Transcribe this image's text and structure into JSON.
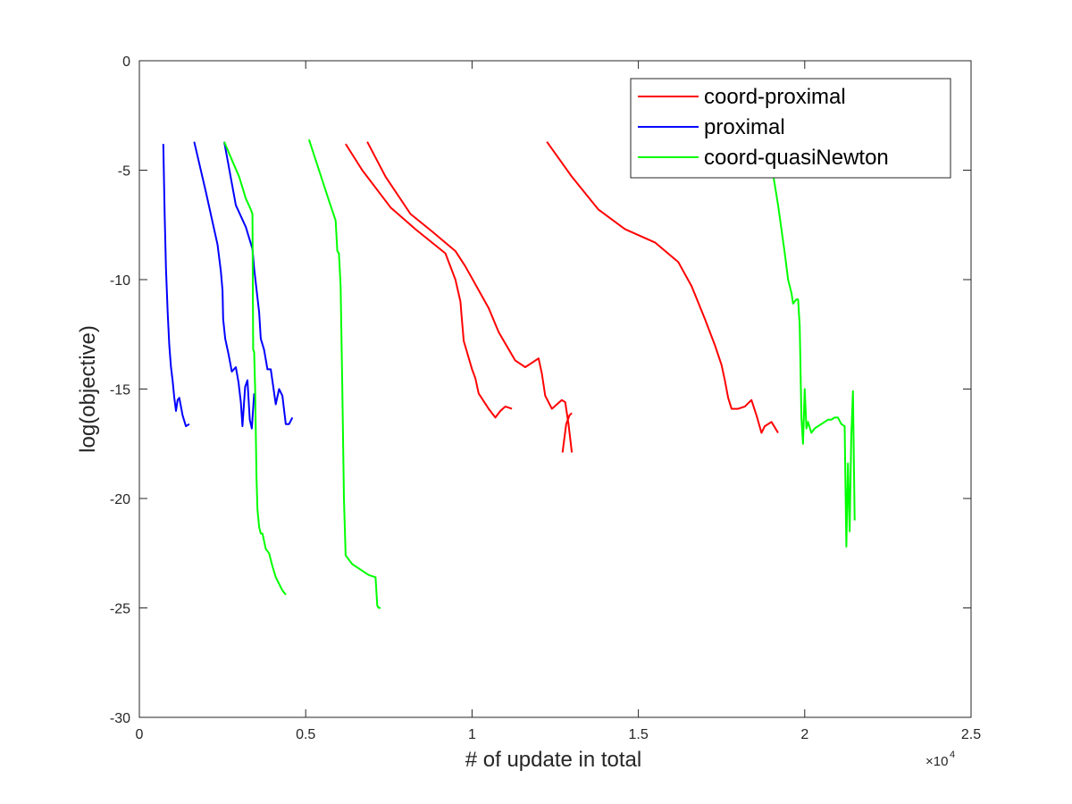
{
  "chart_data": {
    "type": "line",
    "xlabel": "# of update in total",
    "ylabel": "log(objective)",
    "x_exponent": {
      "base": "×10",
      "power": "4"
    },
    "xlim": [
      0,
      2.5
    ],
    "ylim": [
      -30,
      0
    ],
    "x_ticks": [
      0,
      0.5,
      1,
      1.5,
      2,
      2.5
    ],
    "x_tick_labels": [
      "0",
      "0.5",
      "1",
      "1.5",
      "2",
      "2.5"
    ],
    "y_ticks": [
      0,
      -5,
      -10,
      -15,
      -20,
      -25,
      -30
    ],
    "y_tick_labels": [
      "0",
      "-5",
      "-10",
      "-15",
      "-20",
      "-25",
      "-30"
    ],
    "grid": false,
    "legend_position": "top-right",
    "series": [
      {
        "name": "coord-proximal",
        "color": "#ff0000",
        "runs": [
          {
            "x": [
              0.62,
              0.67,
              0.755,
              0.83,
              0.92,
              0.95,
              0.965,
              0.97,
              0.975,
              1.0,
              1.01,
              1.02,
              1.05,
              1.07,
              1.085,
              1.1,
              1.12
            ],
            "y": [
              -3.8,
              -5.0,
              -6.7,
              -7.7,
              -8.8,
              -10.0,
              -11.0,
              -11.9,
              -12.8,
              -14.1,
              -14.5,
              -15.2,
              -15.9,
              -16.3,
              -16.0,
              -15.8,
              -15.9
            ]
          },
          {
            "x": [
              0.685,
              0.74,
              0.815,
              0.88,
              0.95,
              0.98,
              1.05,
              1.08,
              1.13,
              1.16,
              1.2,
              1.21,
              1.22,
              1.24,
              1.27,
              1.28,
              1.29,
              1.3
            ],
            "y": [
              -3.7,
              -5.3,
              -7.0,
              -7.8,
              -8.7,
              -9.4,
              -11.3,
              -12.4,
              -13.7,
              -14.0,
              -13.6,
              -14.3,
              -15.3,
              -15.9,
              -15.5,
              -15.6,
              -16.6,
              -17.9
            ]
          },
          {
            "x": [
              1.272,
              1.283,
              1.293,
              1.3
            ],
            "y": [
              -17.9,
              -16.6,
              -16.2,
              -16.1
            ]
          },
          {
            "x": [
              1.225,
              1.3,
              1.38,
              1.46,
              1.55,
              1.62,
              1.66,
              1.7,
              1.73,
              1.75,
              1.76,
              1.77,
              1.78,
              1.8,
              1.82,
              1.84,
              1.855,
              1.87,
              1.88,
              1.9,
              1.92
            ],
            "y": [
              -3.7,
              -5.3,
              -6.8,
              -7.7,
              -8.3,
              -9.2,
              -10.3,
              -11.8,
              -13.0,
              -13.9,
              -14.6,
              -15.4,
              -15.9,
              -15.9,
              -15.8,
              -15.5,
              -16.2,
              -17.0,
              -16.7,
              -16.5,
              -17.0
            ]
          }
        ]
      },
      {
        "name": "proximal",
        "color": "#0000ff",
        "runs": [
          {
            "x": [
              0.072,
              0.076,
              0.08,
              0.085,
              0.09,
              0.095,
              0.1,
              0.105,
              0.11,
              0.115,
              0.12,
              0.13,
              0.14,
              0.15
            ],
            "y": [
              -3.8,
              -7.0,
              -9.5,
              -11.5,
              -13.0,
              -14.0,
              -14.6,
              -15.4,
              -16.0,
              -15.5,
              -15.4,
              -16.2,
              -16.7,
              -16.6
            ]
          },
          {
            "x": [
              0.165,
              0.2,
              0.235,
              0.245,
              0.25,
              0.252,
              0.258,
              0.268,
              0.278,
              0.29,
              0.298,
              0.305,
              0.31,
              0.318,
              0.325,
              0.332,
              0.338,
              0.345
            ],
            "y": [
              -3.7,
              -6.0,
              -8.4,
              -9.6,
              -10.5,
              -11.8,
              -12.7,
              -13.4,
              -14.2,
              -14.0,
              -14.7,
              -15.6,
              -16.7,
              -14.9,
              -14.6,
              -16.4,
              -16.8,
              -15.2
            ]
          },
          {
            "x": [
              0.255,
              0.29,
              0.32,
              0.34,
              0.345,
              0.36,
              0.365,
              0.375,
              0.385,
              0.395,
              0.41,
              0.42,
              0.43,
              0.44,
              0.45,
              0.46
            ],
            "y": [
              -3.7,
              -6.6,
              -7.6,
              -8.6,
              -9.5,
              -11.5,
              -12.7,
              -13.2,
              -14.1,
              -14.1,
              -15.7,
              -15.0,
              -15.3,
              -16.6,
              -16.6,
              -16.3
            ]
          }
        ]
      },
      {
        "name": "coord-quasiNewton",
        "color": "#00ff00",
        "runs": [
          {
            "x": [
              0.255,
              0.28,
              0.3,
              0.32,
              0.335,
              0.34,
              0.342,
              0.345,
              0.348,
              0.352,
              0.355,
              0.36,
              0.365,
              0.37,
              0.38,
              0.39,
              0.4,
              0.41,
              0.42,
              0.43,
              0.44
            ],
            "y": [
              -3.7,
              -4.6,
              -5.3,
              -6.3,
              -6.8,
              -7.0,
              -13.2,
              -13.3,
              -15.0,
              -19.0,
              -20.5,
              -21.3,
              -21.6,
              -21.6,
              -22.3,
              -22.5,
              -23.1,
              -23.6,
              -23.9,
              -24.2,
              -24.4
            ]
          },
          {
            "x": [
              0.51,
              0.54,
              0.57,
              0.59,
              0.595,
              0.6,
              0.605,
              0.61,
              0.615,
              0.62,
              0.64,
              0.66,
              0.69,
              0.71,
              0.715,
              0.72,
              0.725
            ],
            "y": [
              -3.6,
              -5.0,
              -6.4,
              -7.3,
              -8.7,
              -8.8,
              -10.3,
              -15.0,
              -20.0,
              -22.6,
              -23.0,
              -23.2,
              -23.5,
              -23.6,
              -24.9,
              -25.0,
              -25.0
            ]
          },
          {
            "x": [
              1.905,
              1.92,
              1.94,
              1.95,
              1.96,
              1.965,
              1.97,
              1.975,
              1.98,
              1.985,
              1.99,
              1.995,
              2.0,
              2.005,
              2.01,
              2.02,
              2.03,
              2.04,
              2.05,
              2.06,
              2.07,
              2.08,
              2.09,
              2.1,
              2.11,
              2.12,
              2.125,
              2.13,
              2.135,
              2.14,
              2.145,
              2.15
            ],
            "y": [
              -5.2,
              -6.6,
              -8.8,
              -10.0,
              -10.6,
              -11.1,
              -11.0,
              -10.9,
              -10.9,
              -12.1,
              -16.3,
              -17.5,
              -15.0,
              -16.8,
              -16.5,
              -17.0,
              -16.8,
              -16.7,
              -16.6,
              -16.5,
              -16.4,
              -16.4,
              -16.3,
              -16.3,
              -16.6,
              -16.7,
              -22.2,
              -18.4,
              -21.5,
              -17.2,
              -15.1,
              -21.0
            ]
          }
        ]
      }
    ]
  }
}
